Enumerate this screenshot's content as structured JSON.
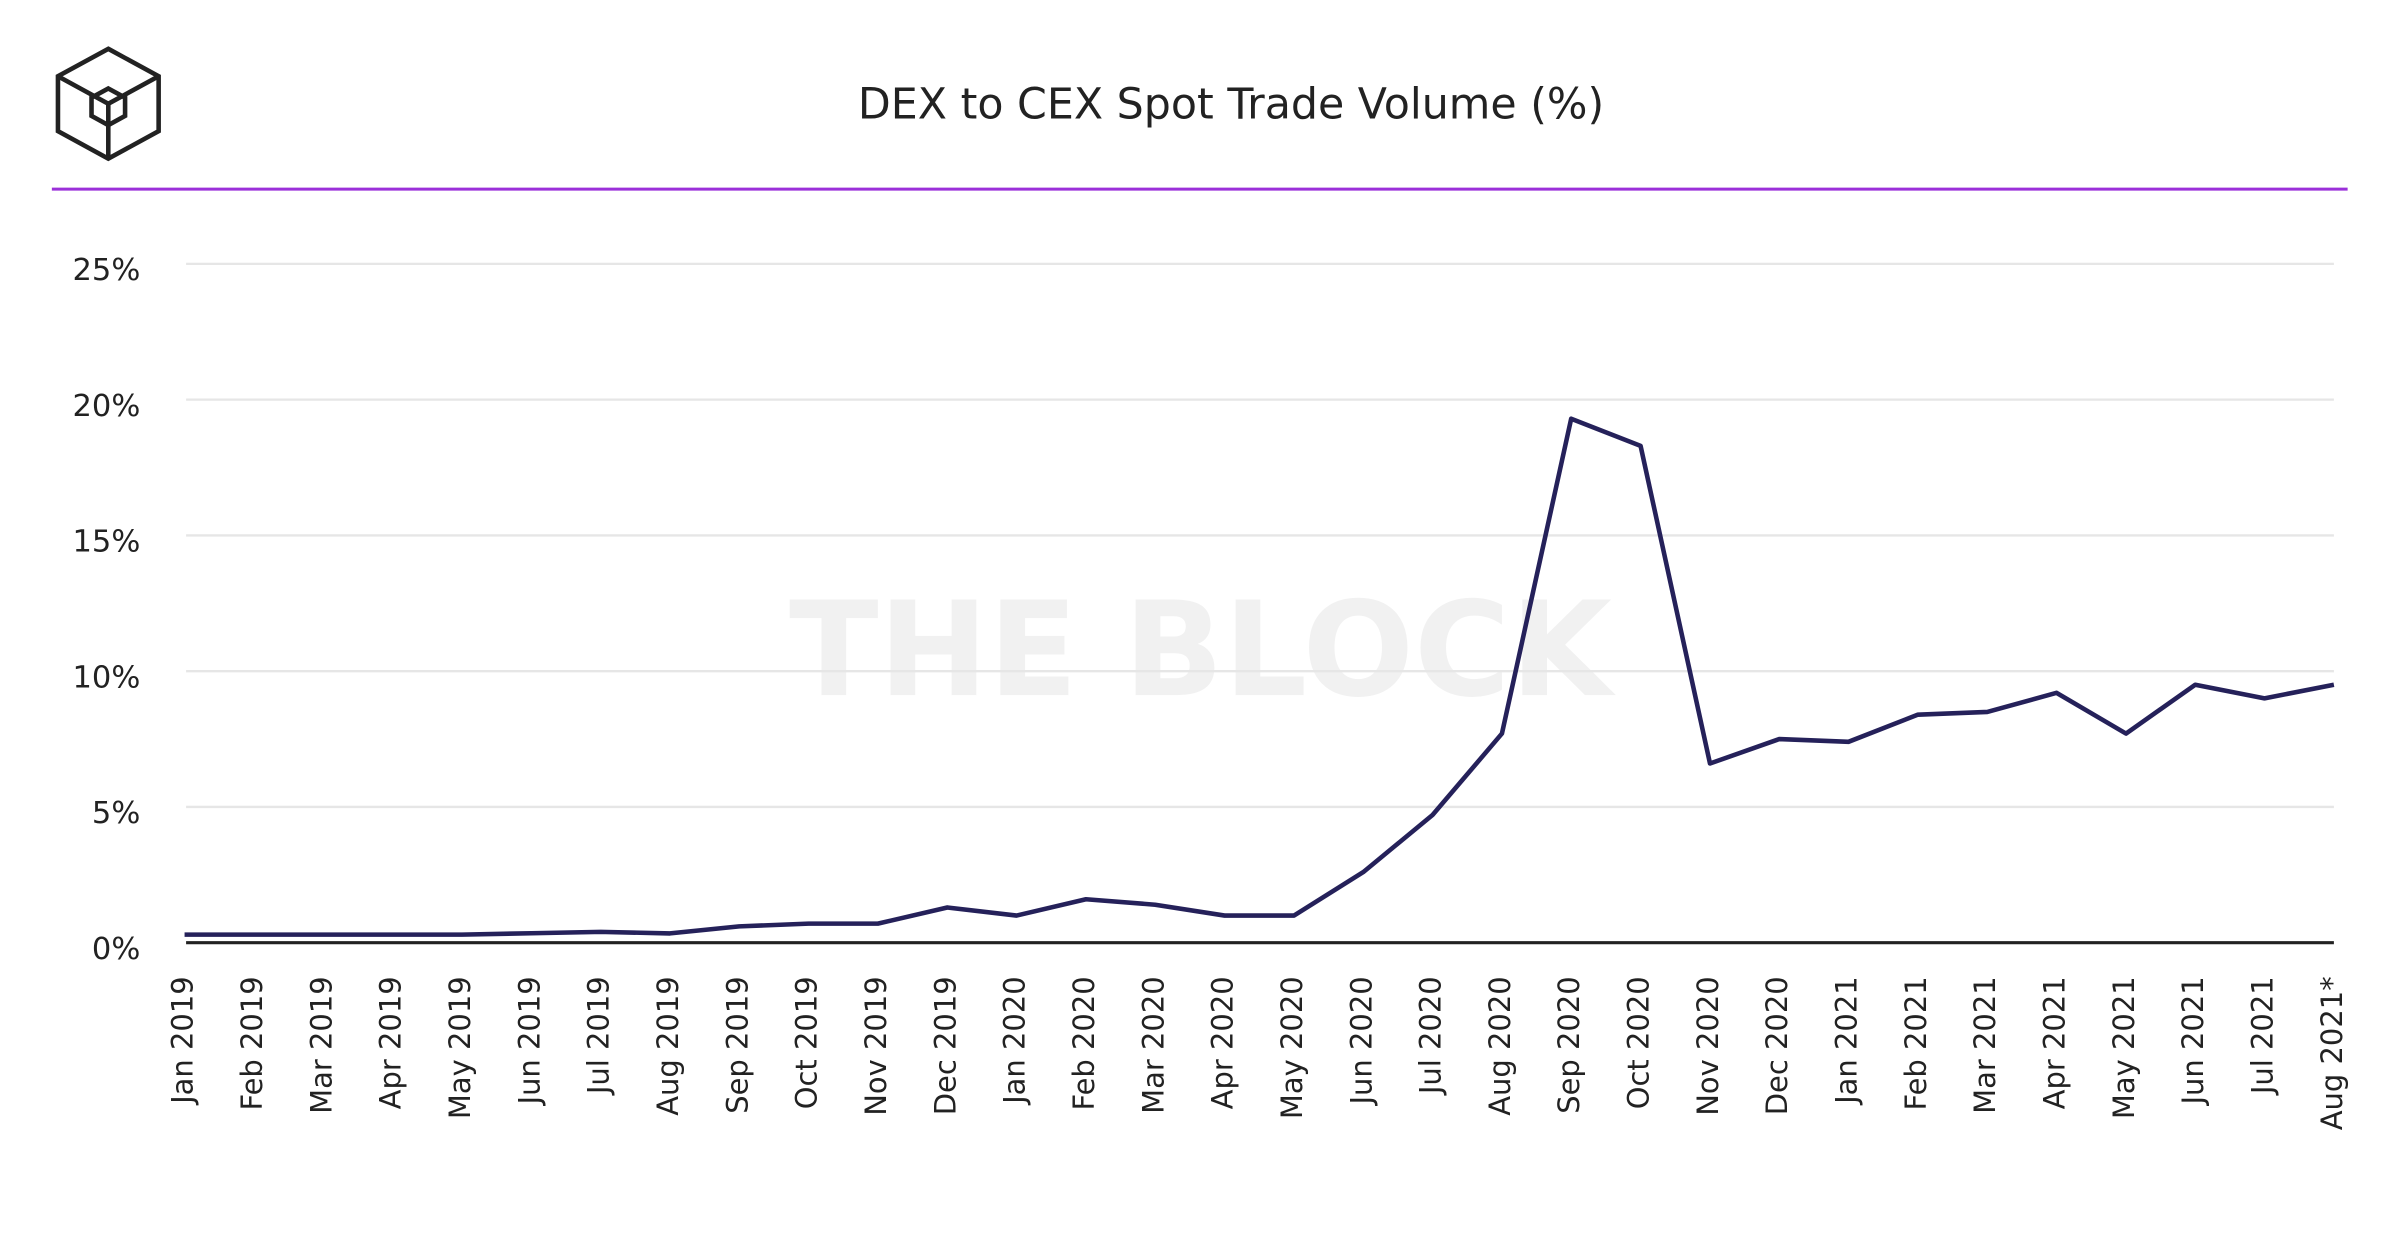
{
  "chart_data": {
    "type": "line",
    "title": "DEX to CEX Spot Trade Volume (%)",
    "watermark": "THE BLOCK",
    "categories": [
      "Jan 2019",
      "Feb 2019",
      "Mar 2019",
      "Apr 2019",
      "May 2019",
      "Jun 2019",
      "Jul 2019",
      "Aug 2019",
      "Sep 2019",
      "Oct 2019",
      "Nov 2019",
      "Dec 2019",
      "Jan 2020",
      "Feb 2020",
      "Mar 2020",
      "Apr 2020",
      "May 2020",
      "Jun 2020",
      "Jul 2020",
      "Aug 2020",
      "Sep 2020",
      "Oct 2020",
      "Nov 2020",
      "Dec 2020",
      "Jan 2021",
      "Feb 2021",
      "Mar 2021",
      "Apr 2021",
      "May 2021",
      "Jun 2021",
      "Jul 2021",
      "Aug 2021*"
    ],
    "series": [
      {
        "name": "DEX to CEX",
        "color": "#25215a",
        "values": [
          0.3,
          0.3,
          0.3,
          0.3,
          0.3,
          0.35,
          0.4,
          0.34,
          0.6,
          0.7,
          0.7,
          1.3,
          1.0,
          1.6,
          1.4,
          1.0,
          1.0,
          2.6,
          4.7,
          7.7,
          19.3,
          18.3,
          6.6,
          7.5,
          7.4,
          8.4,
          8.5,
          9.2,
          7.7,
          9.5,
          9.0,
          9.5
        ]
      }
    ],
    "ylim": [
      0,
      25
    ],
    "yticks": [
      {
        "value": 0,
        "label": "0%"
      },
      {
        "value": 5,
        "label": "5%"
      },
      {
        "value": 10,
        "label": "10%"
      },
      {
        "value": 15,
        "label": "15%"
      },
      {
        "value": 20,
        "label": "20%"
      },
      {
        "value": 25,
        "label": "25%"
      }
    ],
    "grid": true
  }
}
